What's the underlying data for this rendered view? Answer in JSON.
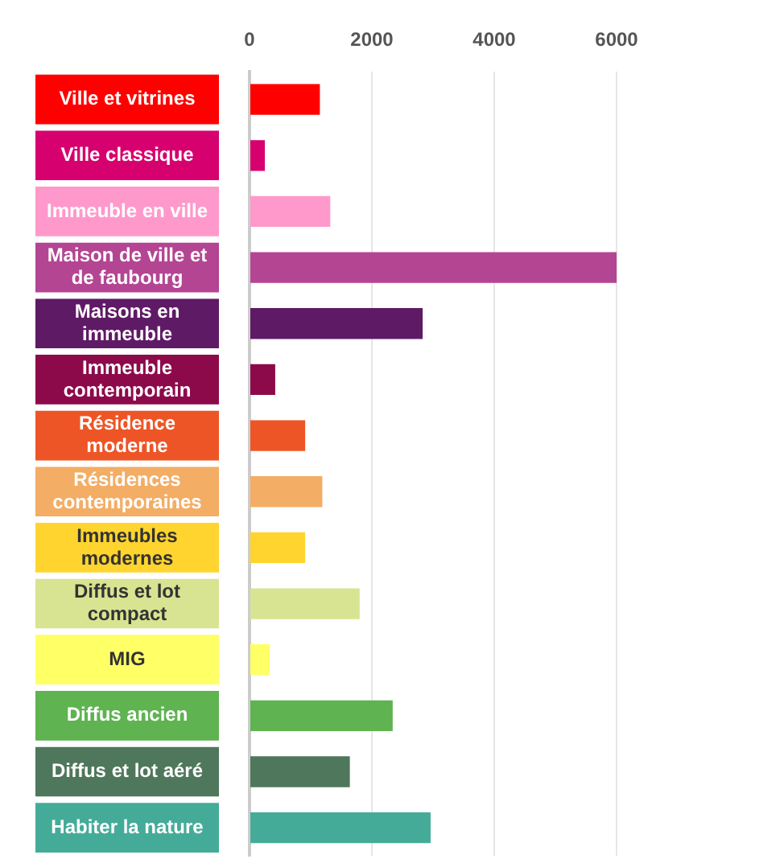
{
  "chart_data": {
    "type": "bar",
    "orientation": "horizontal",
    "categories": [
      "Ville et vitrines",
      "Ville classique",
      "Immeuble en ville",
      "Maison de ville et de faubourg",
      "Maisons en immeuble",
      "Immeuble contemporain",
      "Résidence moderne",
      "Résidences contemporaines",
      "Immeubles modernes",
      "Diffus et lot compact",
      "MIG",
      "Diffus ancien",
      "Diffus et lot aéré",
      "Habiter la nature"
    ],
    "values": [
      1150,
      250,
      1320,
      6000,
      2830,
      420,
      910,
      1190,
      910,
      1800,
      330,
      2340,
      1640,
      2960
    ],
    "colors": [
      "#ff0000",
      "#d6006f",
      "#ff99cc",
      "#b44593",
      "#5f1a65",
      "#8d0a4a",
      "#ee5526",
      "#f3ad65",
      "#ffd42e",
      "#d8e492",
      "#ffff66",
      "#5fb350",
      "#4f775b",
      "#45ab99"
    ],
    "xlim": [
      0,
      6000
    ],
    "xticks": [
      0,
      2000,
      4000,
      6000
    ],
    "grid": "x",
    "legend": false
  }
}
